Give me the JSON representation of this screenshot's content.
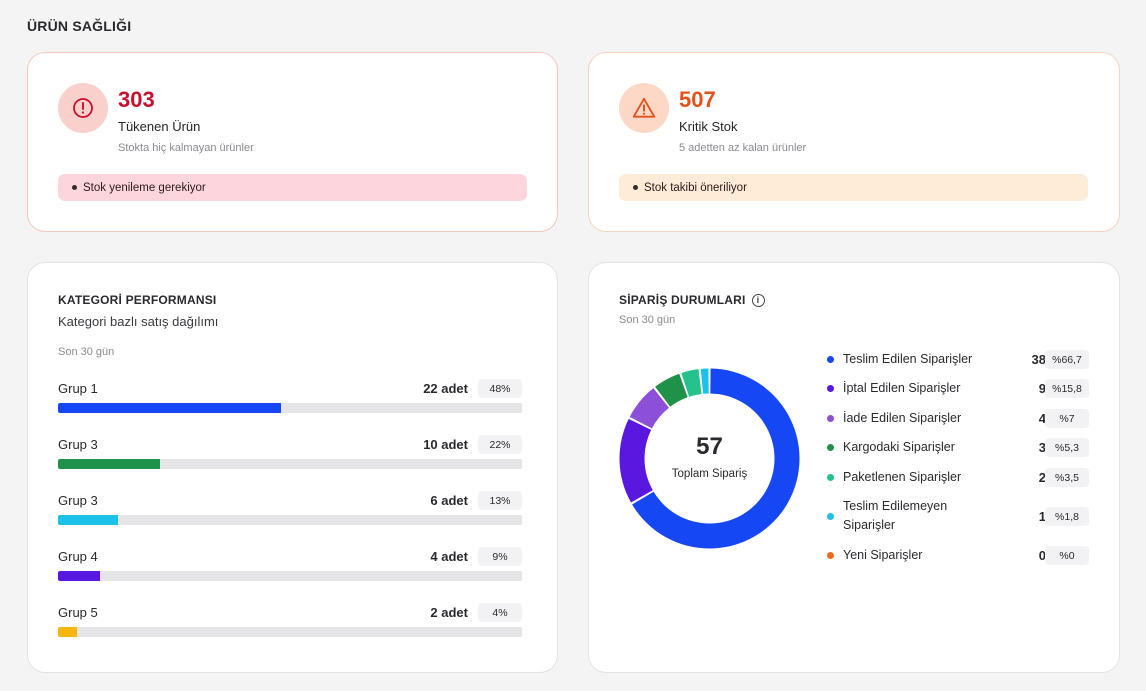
{
  "section_title": "ÜRÜN SAĞLIĞI",
  "health": {
    "out_of_stock": {
      "value": "303",
      "label": "Tükenen Ürün",
      "description": "Stokta hiç kalmayan ürünler",
      "banner": "Stok yenileme gerekiyor",
      "icon": "alert-circle-icon",
      "color": "#c8102e"
    },
    "critical": {
      "value": "507",
      "label": "Kritik Stok",
      "description": "5 adetten az kalan ürünler",
      "banner": "Stok takibi öneriliyor",
      "icon": "warning-triangle-icon",
      "color": "#e8501a"
    }
  },
  "category": {
    "title": "KATEGORİ PERFORMANSI",
    "subtitle": "Kategori bazlı satış dağılımı",
    "period": "Son 30 gün",
    "items": [
      {
        "name": "Grup 1",
        "qty": "22 adet",
        "pct": "48%",
        "fraction": 0.48,
        "color": "#1547f5"
      },
      {
        "name": "Grup 3",
        "qty": "10 adet",
        "pct": "22%",
        "fraction": 0.22,
        "color": "#1f9148"
      },
      {
        "name": "Grup 3",
        "qty": "6 adet",
        "pct": "13%",
        "fraction": 0.13,
        "color": "#1cc0e8"
      },
      {
        "name": "Grup 4",
        "qty": "4 adet",
        "pct": "9%",
        "fraction": 0.09,
        "color": "#5a17e0"
      },
      {
        "name": "Grup 5",
        "qty": "2 adet",
        "pct": "4%",
        "fraction": 0.04,
        "color": "#f5b70f"
      }
    ]
  },
  "orders": {
    "title": "SİPARİŞ DURUMLARI",
    "period": "Son 30 gün",
    "total": "57",
    "total_label": "Toplam Sipariş",
    "items": [
      {
        "name": "Teslim Edilen Siparişler",
        "count": 38,
        "pct": "%66,7",
        "color": "#1547f5"
      },
      {
        "name": "İptal Edilen Siparişler",
        "count": 9,
        "pct": "%15,8",
        "color": "#5a17e0"
      },
      {
        "name": "İade Edilen Siparişler",
        "count": 4,
        "pct": "%7",
        "color": "#8b4fd8"
      },
      {
        "name": "Kargodaki Siparişler",
        "count": 3,
        "pct": "%5,3",
        "color": "#1f9148"
      },
      {
        "name": "Paketlenen Siparişler",
        "count": 2,
        "pct": "%3,5",
        "color": "#26c28e"
      },
      {
        "name": "Teslim Edilemeyen Siparişler",
        "count": 1,
        "pct": "%1,8",
        "color": "#1cc0e8"
      },
      {
        "name": "Yeni Siparişler",
        "count": 0,
        "pct": "%0",
        "color": "#f06a1a"
      }
    ]
  }
}
